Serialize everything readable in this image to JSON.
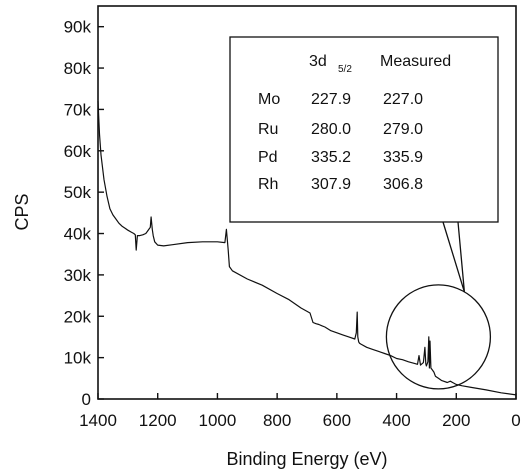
{
  "chart_data": {
    "type": "line",
    "title": "",
    "xlabel": "Binding Energy (eV)",
    "ylabel": "CPS",
    "xlim": [
      1400,
      0
    ],
    "ylim": [
      0,
      95000
    ],
    "x_ticks": [
      1400,
      1200,
      1000,
      800,
      600,
      400,
      200,
      0
    ],
    "x_tick_labels": [
      "1400",
      "1200",
      "1000",
      "800",
      "600",
      "400",
      "200",
      "0"
    ],
    "y_ticks": [
      0,
      10000,
      20000,
      30000,
      40000,
      50000,
      60000,
      70000,
      80000,
      90000
    ],
    "y_tick_labels": [
      "0",
      "10k",
      "20k",
      "30k",
      "40k",
      "50k",
      "60k",
      "70k",
      "80k",
      "90k"
    ],
    "grid": false,
    "series": [
      {
        "x": [
          1400,
          1395,
          1390,
          1380,
          1370,
          1360,
          1350,
          1340,
          1330,
          1320,
          1310,
          1300,
          1290,
          1280,
          1275,
          1272,
          1268,
          1260,
          1250,
          1240,
          1235,
          1230,
          1225,
          1222,
          1218,
          1215,
          1210,
          1200,
          1180,
          1150,
          1100,
          1050,
          1000,
          975,
          970,
          967,
          964,
          960,
          950,
          900,
          850,
          800,
          760,
          720,
          690,
          680,
          670,
          660,
          650,
          640,
          620,
          600,
          580,
          560,
          540,
          535,
          532,
          530,
          527,
          524,
          520,
          500,
          480,
          460,
          440,
          420,
          400,
          380,
          360,
          340,
          330,
          325,
          320,
          310,
          305,
          302,
          300,
          295,
          292,
          290,
          288,
          285,
          280,
          275,
          270,
          260,
          250,
          230,
          220,
          210,
          200,
          180,
          150,
          100,
          50,
          0
        ],
        "y": [
          72000,
          64000,
          59000,
          53000,
          49000,
          46000,
          44500,
          43500,
          42500,
          41800,
          41300,
          40800,
          40400,
          40000,
          39700,
          36000,
          39500,
          39500,
          39700,
          40000,
          40500,
          41000,
          41500,
          44000,
          41000,
          39500,
          38000,
          37200,
          37000,
          37300,
          37800,
          38000,
          38000,
          37800,
          41000,
          38500,
          36000,
          32000,
          31000,
          29000,
          27500,
          25500,
          24000,
          22000,
          20800,
          18500,
          18200,
          18000,
          17700,
          17400,
          16500,
          16000,
          15500,
          15000,
          14500,
          16000,
          21000,
          15000,
          13800,
          13500,
          13300,
          12500,
          12000,
          11500,
          11000,
          10500,
          9800,
          9500,
          9000,
          8600,
          8400,
          10500,
          8200,
          8800,
          12500,
          8500,
          8000,
          9000,
          15000,
          7500,
          14000,
          7500,
          7000,
          6500,
          5500,
          5000,
          4500,
          4000,
          4300,
          3900,
          3500,
          3200,
          2800,
          2200,
          1500,
          1000
        ]
      }
    ],
    "table": {
      "headers": [
        "",
        "3d",
        "Measured"
      ],
      "header_subscript": "5/2",
      "rows": [
        {
          "element": "Mo",
          "ref": "227.9",
          "measured": "227.0"
        },
        {
          "element": "Ru",
          "ref": "280.0",
          "measured": "279.0"
        },
        {
          "element": "Pd",
          "ref": "335.2",
          "measured": "335.9"
        },
        {
          "element": "Rh",
          "ref": "307.9",
          "measured": "306.8"
        }
      ]
    },
    "callout": {
      "center_x": 260,
      "center_y": 15000
    }
  },
  "style": {
    "line_color": "#111111",
    "axis_color": "#111111",
    "background": "#ffffff"
  }
}
